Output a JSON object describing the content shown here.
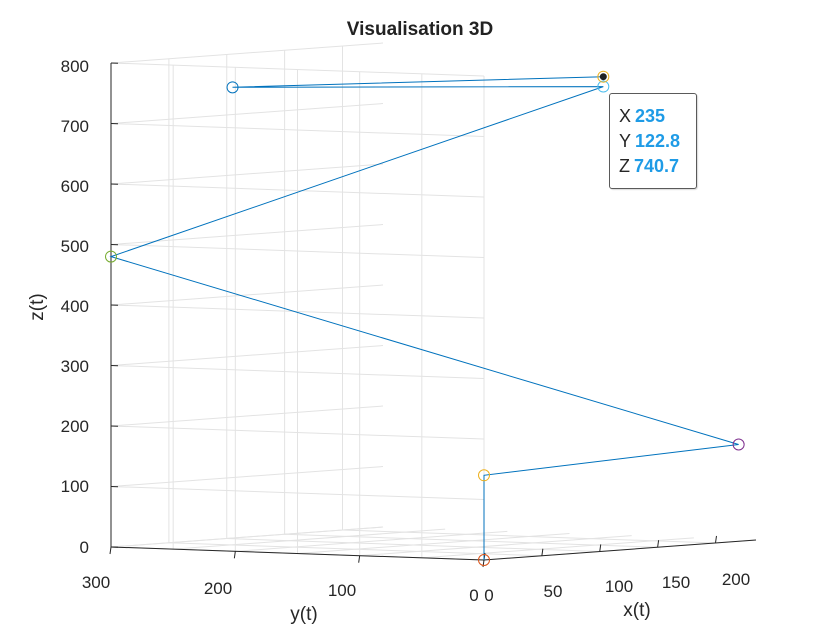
{
  "chart_data": {
    "type": "line3d",
    "title": "Visualisation 3D",
    "xlabel": "x(t)",
    "ylabel": "y(t)",
    "zlabel": "z(t)",
    "xlim": [
      0,
      235
    ],
    "ylim": [
      0,
      300
    ],
    "zlim": [
      0,
      800
    ],
    "xticks": [
      "0",
      "50",
      "100",
      "150",
      "200"
    ],
    "yticks": [
      "300",
      "200",
      "100",
      "0"
    ],
    "zticks": [
      "800",
      "700",
      "600",
      "500",
      "400",
      "300",
      "200",
      "100",
      "0"
    ],
    "grid": true,
    "line_color": "#0072bd",
    "points": [
      {
        "x": 0,
        "y": 0,
        "z": 0,
        "marker_color": "#d95319"
      },
      {
        "x": 0,
        "y": 0,
        "z": 140,
        "marker_color": "#edb120"
      },
      {
        "x": 220,
        "y": 0,
        "z": 160,
        "marker_color": "#7e2f8e"
      },
      {
        "x": 0,
        "y": 300,
        "z": 480,
        "marker_color": "#77ac30"
      },
      {
        "x": 235,
        "y": 122.8,
        "z": 740.7,
        "marker_color": "#4dbeee"
      },
      {
        "x": 105,
        "y": 300,
        "z": 745,
        "marker_color": "#0072bd"
      },
      {
        "x": 235,
        "y": 122.8,
        "z": 757,
        "marker_color": "#edb120"
      }
    ]
  },
  "datatip": {
    "x_label": "X",
    "x_value": "235",
    "y_label": "Y",
    "y_value": "122.8",
    "z_label": "Z",
    "z_value": "740.7"
  }
}
